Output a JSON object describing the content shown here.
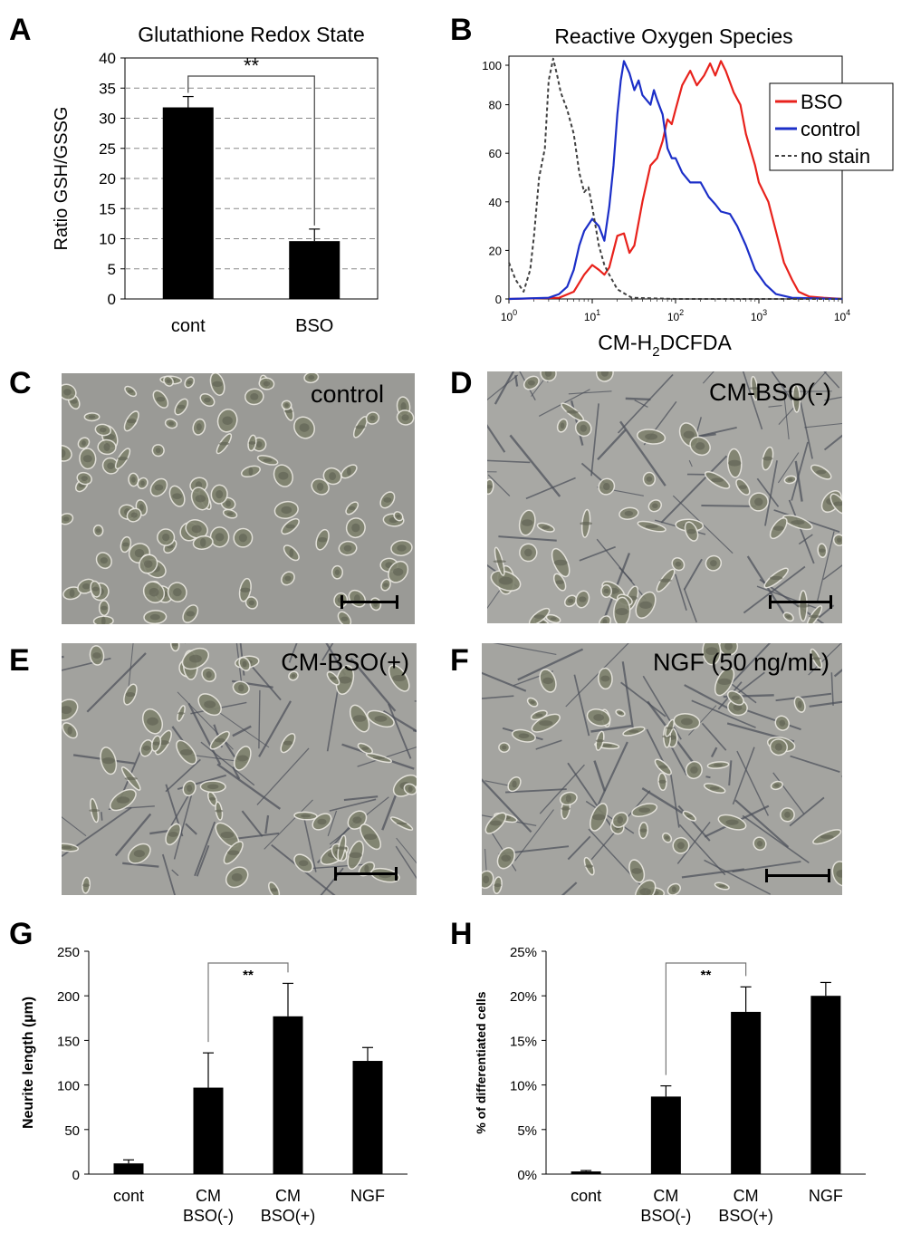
{
  "panel_letters": [
    "A",
    "B",
    "C",
    "D",
    "E",
    "F",
    "G",
    "H"
  ],
  "photos": {
    "C": {
      "label": "control"
    },
    "D": {
      "label": "CM-BSO(-)"
    },
    "E": {
      "label": "CM-BSO(+)"
    },
    "F": {
      "label": "NGF (50 ng/mL)"
    }
  },
  "chart_data": [
    {
      "id": "A",
      "type": "bar",
      "title": "Glutathione Redox State",
      "xlabel": "",
      "ylabel": "Ratio GSH/GSSG",
      "categories": [
        "cont",
        "BSO"
      ],
      "values": [
        31.8,
        9.6
      ],
      "errors": [
        1.8,
        2.0
      ],
      "ylim": [
        0,
        40
      ],
      "yticks": [
        "0",
        "5",
        "10",
        "15",
        "20",
        "25",
        "30",
        "35",
        "40"
      ],
      "grid": true,
      "significance": "**"
    },
    {
      "id": "B",
      "type": "line",
      "title": "Reactive Oxygen Species",
      "xlabel": "CM-H2DCFDA",
      "ylabel": "",
      "xscale": "log",
      "xlim": [
        1,
        10000
      ],
      "ylim": [
        0,
        100
      ],
      "xticks": [
        "10^0",
        "10^1",
        "10^2",
        "10^3",
        "10^4"
      ],
      "yticks": [
        "0",
        "20",
        "40",
        "60",
        "80",
        "100"
      ],
      "legend_position": "top-right",
      "series": [
        {
          "name": "BSO",
          "color": "#e8221c",
          "style": "solid",
          "points": [
            [
              1,
              0
            ],
            [
              4,
              0.5
            ],
            [
              6,
              3
            ],
            [
              8,
              10
            ],
            [
              10,
              14
            ],
            [
              12,
              12
            ],
            [
              14,
              10
            ],
            [
              16,
              13
            ],
            [
              20,
              26
            ],
            [
              24,
              27
            ],
            [
              28,
              19
            ],
            [
              32,
              22
            ],
            [
              40,
              40
            ],
            [
              50,
              55
            ],
            [
              60,
              58
            ],
            [
              70,
              65
            ],
            [
              80,
              74
            ],
            [
              90,
              72
            ],
            [
              100,
              78
            ],
            [
              120,
              88
            ],
            [
              150,
              94
            ],
            [
              180,
              88
            ],
            [
              220,
              92
            ],
            [
              260,
              97
            ],
            [
              300,
              92
            ],
            [
              350,
              98
            ],
            [
              400,
              94
            ],
            [
              500,
              85
            ],
            [
              600,
              80
            ],
            [
              700,
              68
            ],
            [
              900,
              55
            ],
            [
              1000,
              48
            ],
            [
              1300,
              40
            ],
            [
              1600,
              28
            ],
            [
              2000,
              15
            ],
            [
              2500,
              8
            ],
            [
              3000,
              3
            ],
            [
              4000,
              1
            ],
            [
              6000,
              0.5
            ],
            [
              10000,
              0
            ]
          ]
        },
        {
          "name": "control",
          "color": "#1c2fc8",
          "style": "solid",
          "points": [
            [
              1,
              0
            ],
            [
              3,
              0.5
            ],
            [
              4,
              2
            ],
            [
              5,
              5
            ],
            [
              6,
              12
            ],
            [
              7,
              22
            ],
            [
              8,
              28
            ],
            [
              10,
              33
            ],
            [
              12,
              30
            ],
            [
              14,
              24
            ],
            [
              16,
              38
            ],
            [
              18,
              55
            ],
            [
              20,
              76
            ],
            [
              22,
              90
            ],
            [
              24,
              98
            ],
            [
              28,
              93
            ],
            [
              32,
              86
            ],
            [
              36,
              90
            ],
            [
              40,
              84
            ],
            [
              50,
              80
            ],
            [
              55,
              86
            ],
            [
              60,
              82
            ],
            [
              70,
              76
            ],
            [
              80,
              62
            ],
            [
              90,
              58
            ],
            [
              100,
              58
            ],
            [
              120,
              52
            ],
            [
              150,
              48
            ],
            [
              200,
              48
            ],
            [
              250,
              42
            ],
            [
              300,
              39
            ],
            [
              350,
              36
            ],
            [
              450,
              35
            ],
            [
              550,
              30
            ],
            [
              700,
              22
            ],
            [
              900,
              12
            ],
            [
              1200,
              6
            ],
            [
              1600,
              2
            ],
            [
              2500,
              0.5
            ],
            [
              10000,
              0
            ]
          ]
        },
        {
          "name": "no stain",
          "color": "#404040",
          "style": "dashed",
          "points": [
            [
              1,
              15
            ],
            [
              1.2,
              8
            ],
            [
              1.5,
              3
            ],
            [
              1.8,
              12
            ],
            [
              2,
              26
            ],
            [
              2.3,
              50
            ],
            [
              2.7,
              62
            ],
            [
              3,
              90
            ],
            [
              3.4,
              99
            ],
            [
              3.8,
              92
            ],
            [
              4.2,
              85
            ],
            [
              5,
              78
            ],
            [
              6,
              68
            ],
            [
              7,
              52
            ],
            [
              8,
              44
            ],
            [
              9,
              46
            ],
            [
              10,
              38
            ],
            [
              12,
              22
            ],
            [
              14,
              14
            ],
            [
              16,
              10
            ],
            [
              20,
              4
            ],
            [
              25,
              2
            ],
            [
              30,
              0.5
            ],
            [
              100,
              0
            ],
            [
              10000,
              0
            ]
          ]
        }
      ]
    },
    {
      "id": "G",
      "type": "bar",
      "title": "",
      "xlabel": "",
      "ylabel": "Neurite length (µm)",
      "categories": [
        [
          "cont"
        ],
        [
          "CM",
          "BSO(-)"
        ],
        [
          "CM",
          "BSO(+)"
        ],
        [
          "NGF"
        ]
      ],
      "values": [
        12,
        97,
        177,
        127
      ],
      "errors": [
        4,
        39,
        37,
        15
      ],
      "ylim": [
        0,
        250
      ],
      "yticks": [
        "0",
        "50",
        "100",
        "150",
        "200",
        "250"
      ],
      "grid": false,
      "significance": "**"
    },
    {
      "id": "H",
      "type": "bar",
      "title": "",
      "xlabel": "",
      "ylabel": "% of differentiated cells",
      "categories": [
        [
          "cont"
        ],
        [
          "CM",
          "BSO(-)"
        ],
        [
          "CM",
          "BSO(+)"
        ],
        [
          "NGF"
        ]
      ],
      "values": [
        0.3,
        8.7,
        18.2,
        20.0
      ],
      "errors": [
        0.1,
        1.2,
        2.8,
        1.5
      ],
      "ylim": [
        0,
        25
      ],
      "yticks": [
        "0%",
        "5%",
        "10%",
        "15%",
        "20%",
        "25%"
      ],
      "grid": false,
      "significance": "**"
    }
  ]
}
